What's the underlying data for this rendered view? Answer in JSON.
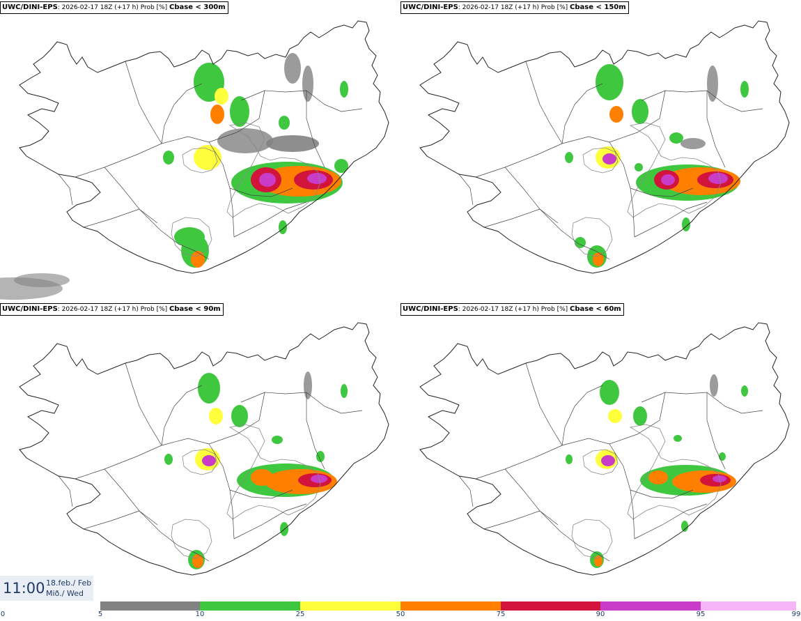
{
  "panels": [
    {
      "model": "UWC/DINI-EPS",
      "info": ": 2026-02-17 18Z (+17 h) Prob [%]",
      "threshold": "Cbase < 300m"
    },
    {
      "model": "UWC/DINI-EPS",
      "info": ": 2026-02-17 18Z (+17 h) Prob [%]",
      "threshold": "Cbase < 150m"
    },
    {
      "model": "UWC/DINI-EPS",
      "info": ": 2026-02-17 18Z (+17 h) Prob [%]",
      "threshold": "Cbase < 90m"
    },
    {
      "model": "UWC/DINI-EPS",
      "info": ": 2026-02-17 18Z (+17 h) Prob [%]",
      "threshold": "Cbase < 60m"
    }
  ],
  "valid_time": {
    "time": "11:00",
    "date": "18.feb./ Feb",
    "weekday": "Mið./ Wed"
  },
  "legend": {
    "ticks": [
      "0",
      "5",
      "10",
      "25",
      "50",
      "75",
      "90",
      "95",
      "99"
    ],
    "colors": [
      "#b4b4b4",
      "#828282",
      "#3fc83f",
      "#ffff3c",
      "#ff7f00",
      "#d2143c",
      "#c83cc8",
      "#f5b4f5"
    ]
  }
}
